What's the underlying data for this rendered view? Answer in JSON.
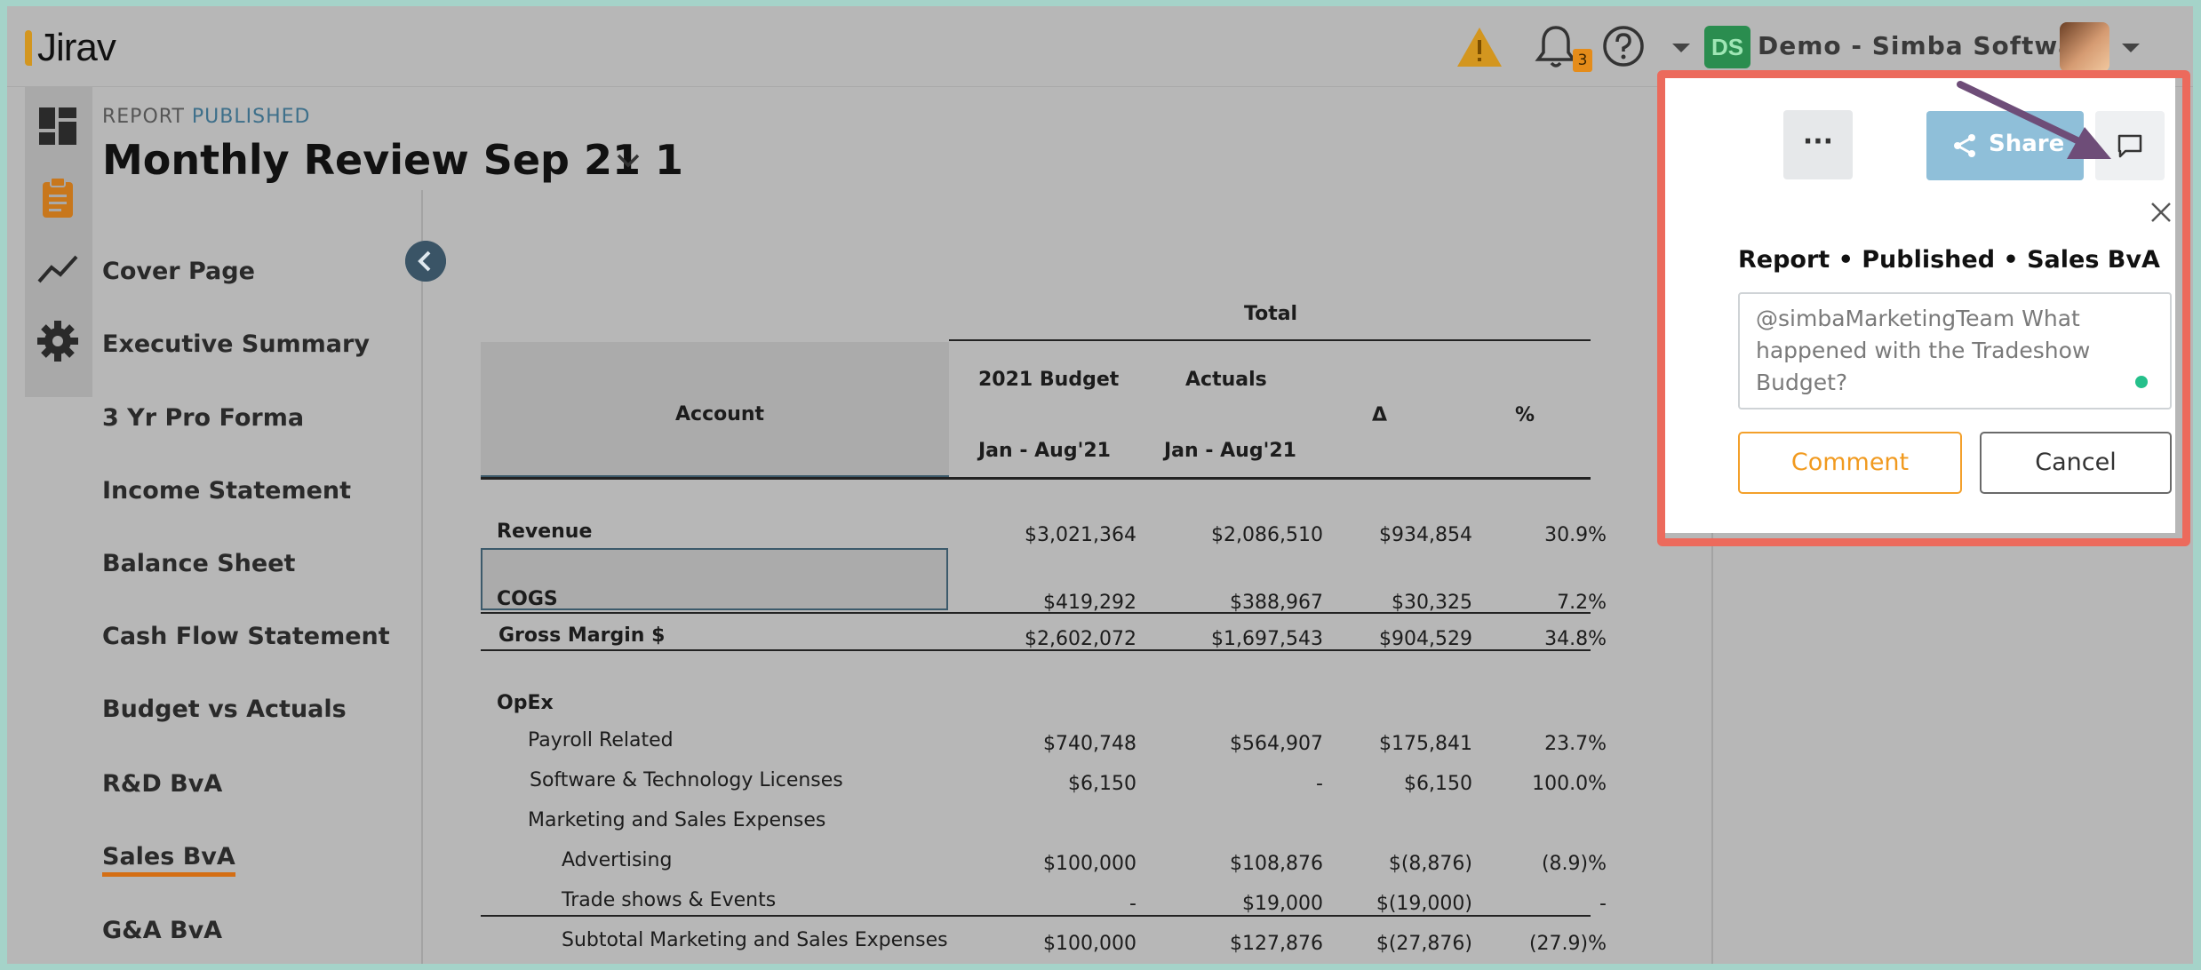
{
  "app": {
    "logo_text": "Jirav"
  },
  "topbar": {
    "notifications_count": "3",
    "user_initials": "DS",
    "company_name": "Demo - Simba Software"
  },
  "report": {
    "status_prefix": "REPORT",
    "status_value": "PUBLISHED",
    "title": "Monthly Review Sep 21 1"
  },
  "nav": {
    "items": [
      "Cover Page",
      "Executive Summary",
      "3 Yr Pro Forma",
      "Income Statement",
      "Balance Sheet",
      "Cash Flow Statement",
      "Budget vs Actuals",
      "R&D BvA",
      "Sales BvA",
      "G&A BvA"
    ],
    "active": "Sales BvA"
  },
  "table": {
    "group_header": "Total",
    "col_account": "Account",
    "col_budget": "2021 Budget",
    "col_budget_period": "Jan - Aug'21",
    "col_actuals": "Actuals",
    "col_actuals_period": "Jan - Aug'21",
    "col_delta": "Δ",
    "col_pct": "%",
    "rows": [
      {
        "account": "Revenue",
        "budget": "$3,021,364",
        "actuals": "$2,086,510",
        "delta": "$934,854",
        "pct": "30.9%"
      },
      {
        "account": "COGS",
        "budget": "$419,292",
        "actuals": "$388,967",
        "delta": "$30,325",
        "pct": "7.2%"
      },
      {
        "account": "Gross Margin $",
        "budget": "$2,602,072",
        "actuals": "$1,697,543",
        "delta": "$904,529",
        "pct": "34.8%"
      },
      {
        "account": "OpEx",
        "budget": "",
        "actuals": "",
        "delta": "",
        "pct": ""
      },
      {
        "account": "Payroll Related",
        "budget": "$740,748",
        "actuals": "$564,907",
        "delta": "$175,841",
        "pct": "23.7%"
      },
      {
        "account": "Software & Technology Licenses",
        "budget": "$6,150",
        "actuals": "-",
        "delta": "$6,150",
        "pct": "100.0%"
      },
      {
        "account": "Marketing and Sales Expenses",
        "budget": "",
        "actuals": "",
        "delta": "",
        "pct": ""
      },
      {
        "account": "Advertising",
        "budget": "$100,000",
        "actuals": "$108,876",
        "delta": "$(8,876)",
        "pct": "(8.9)%"
      },
      {
        "account": "Trade shows & Events",
        "budget": "-",
        "actuals": "$19,000",
        "delta": "$(19,000)",
        "pct": "-"
      },
      {
        "account": "Subtotal Marketing and Sales Expenses",
        "budget": "$100,000",
        "actuals": "$127,876",
        "delta": "$(27,876)",
        "pct": "(27.9)%"
      }
    ]
  },
  "comment_panel": {
    "share_label": "Share",
    "more_label": "···",
    "breadcrumb": "Report • Published • Sales BvA",
    "comment_text": "@simbaMarketingTeam What happened with the Tradeshow Budget?",
    "comment_button": "Comment",
    "cancel_button": "Cancel"
  },
  "colors": {
    "highlight_border": "#ec6a5c",
    "accent_orange": "#f19a1f",
    "share_blue": "#8fbfd9",
    "annotation_arrow": "#6e4d78"
  }
}
